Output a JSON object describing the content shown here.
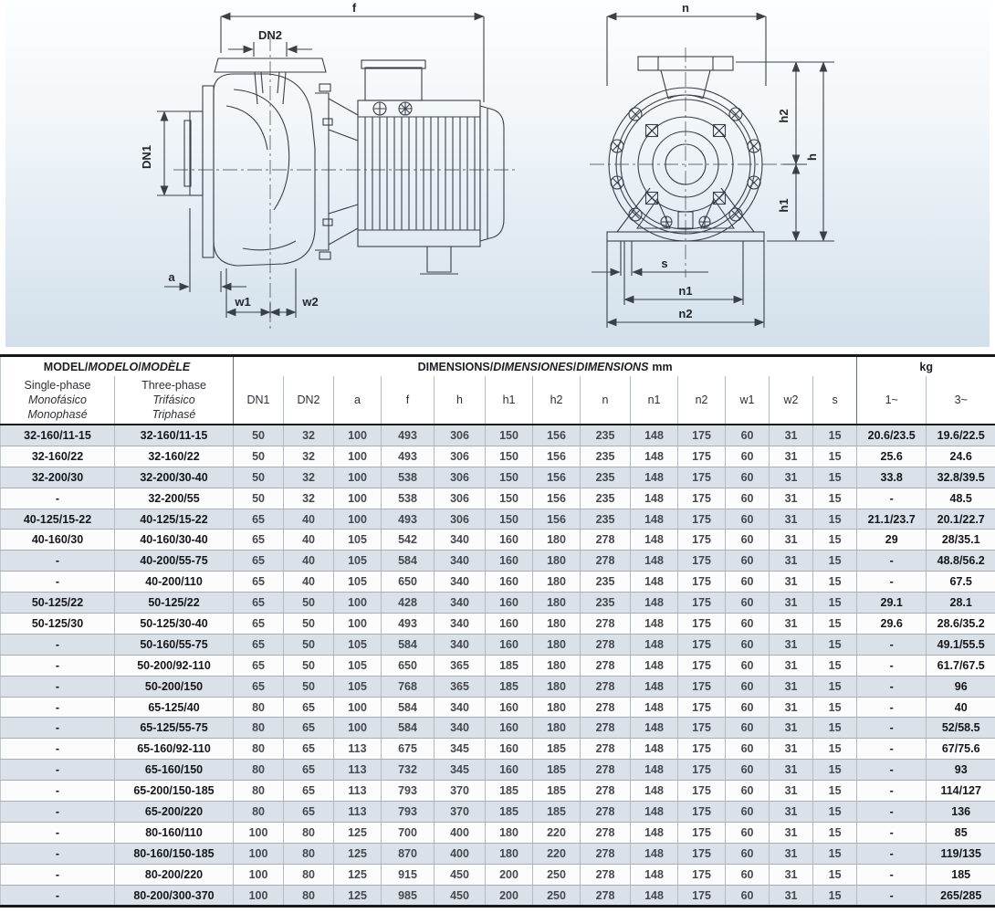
{
  "drawings": {
    "side": {
      "f": "f",
      "dn2": "DN2",
      "dn1": "DN1",
      "a": "a",
      "w1": "w1",
      "w2": "w2"
    },
    "front": {
      "n": "n",
      "h2": "h2",
      "h": "h",
      "h1": "h1",
      "s": "s",
      "n1": "n1",
      "n2": "n2"
    }
  },
  "table": {
    "header": {
      "sep": "/",
      "model_title": [
        "MODEL",
        "MODELO",
        "MODÈLE"
      ],
      "dims_title": [
        "DIMENSIONS",
        "DIMENSIONES",
        "DIMENSIONS"
      ],
      "unit": "mm",
      "kg": "kg",
      "single_phase": [
        "Single-phase",
        "Monofásico",
        "Monophasé"
      ],
      "three_phase": [
        "Three-phase",
        "Trifásico",
        "Triphasé"
      ],
      "dim_cols": [
        "DN1",
        "DN2",
        "a",
        "f",
        "h",
        "h1",
        "h2",
        "n",
        "n1",
        "n2",
        "w1",
        "w2",
        "s"
      ],
      "kg_cols": [
        "1~",
        "3~"
      ]
    },
    "rows": [
      {
        "m1": "32-160/11-15",
        "m3": "32-160/11-15",
        "dims": [
          50,
          32,
          100,
          493,
          306,
          150,
          156,
          235,
          148,
          175,
          60,
          31,
          15
        ],
        "kg1": "20.6/23.5",
        "kg3": "19.6/22.5"
      },
      {
        "m1": "32-160/22",
        "m3": "32-160/22",
        "dims": [
          50,
          32,
          100,
          493,
          306,
          150,
          156,
          235,
          148,
          175,
          60,
          31,
          15
        ],
        "kg1": "25.6",
        "kg3": "24.6"
      },
      {
        "m1": "32-200/30",
        "m3": "32-200/30-40",
        "dims": [
          50,
          32,
          100,
          538,
          306,
          150,
          156,
          235,
          148,
          175,
          60,
          31,
          15
        ],
        "kg1": "33.8",
        "kg3": "32.8/39.5"
      },
      {
        "m1": "-",
        "m3": "32-200/55",
        "dims": [
          50,
          32,
          100,
          538,
          306,
          150,
          156,
          235,
          148,
          175,
          60,
          31,
          15
        ],
        "kg1": "-",
        "kg3": "48.5"
      },
      {
        "m1": "40-125/15-22",
        "m3": "40-125/15-22",
        "dims": [
          65,
          40,
          100,
          493,
          306,
          150,
          156,
          235,
          148,
          175,
          60,
          31,
          15
        ],
        "kg1": "21.1/23.7",
        "kg3": "20.1/22.7"
      },
      {
        "m1": "40-160/30",
        "m3": "40-160/30-40",
        "dims": [
          65,
          40,
          105,
          542,
          340,
          160,
          180,
          278,
          148,
          175,
          60,
          31,
          15
        ],
        "kg1": "29",
        "kg3": "28/35.1"
      },
      {
        "m1": "-",
        "m3": "40-200/55-75",
        "dims": [
          65,
          40,
          105,
          584,
          340,
          160,
          180,
          278,
          148,
          175,
          60,
          31,
          15
        ],
        "kg1": "-",
        "kg3": "48.8/56.2"
      },
      {
        "m1": "-",
        "m3": "40-200/110",
        "dims": [
          65,
          40,
          105,
          650,
          340,
          160,
          180,
          235,
          148,
          175,
          60,
          31,
          15
        ],
        "kg1": "-",
        "kg3": "67.5"
      },
      {
        "m1": "50-125/22",
        "m3": "50-125/22",
        "dims": [
          65,
          50,
          100,
          428,
          340,
          160,
          180,
          235,
          148,
          175,
          60,
          31,
          15
        ],
        "kg1": "29.1",
        "kg3": "28.1"
      },
      {
        "m1": "50-125/30",
        "m3": "50-125/30-40",
        "dims": [
          65,
          50,
          100,
          493,
          340,
          160,
          180,
          278,
          148,
          175,
          60,
          31,
          15
        ],
        "kg1": "29.6",
        "kg3": "28.6/35.2"
      },
      {
        "m1": "-",
        "m3": "50-160/55-75",
        "dims": [
          65,
          50,
          105,
          584,
          340,
          160,
          180,
          278,
          148,
          175,
          60,
          31,
          15
        ],
        "kg1": "-",
        "kg3": "49.1/55.5"
      },
      {
        "m1": "-",
        "m3": "50-200/92-110",
        "dims": [
          65,
          50,
          105,
          650,
          365,
          185,
          180,
          278,
          148,
          175,
          60,
          31,
          15
        ],
        "kg1": "-",
        "kg3": "61.7/67.5"
      },
      {
        "m1": "-",
        "m3": "50-200/150",
        "dims": [
          65,
          50,
          105,
          768,
          365,
          185,
          180,
          278,
          148,
          175,
          60,
          31,
          15
        ],
        "kg1": "-",
        "kg3": "96"
      },
      {
        "m1": "-",
        "m3": "65-125/40",
        "dims": [
          80,
          65,
          100,
          584,
          340,
          160,
          180,
          278,
          148,
          175,
          60,
          31,
          15
        ],
        "kg1": "-",
        "kg3": "40"
      },
      {
        "m1": "-",
        "m3": "65-125/55-75",
        "dims": [
          80,
          65,
          100,
          584,
          340,
          160,
          180,
          278,
          148,
          175,
          60,
          31,
          15
        ],
        "kg1": "-",
        "kg3": "52/58.5"
      },
      {
        "m1": "-",
        "m3": "65-160/92-110",
        "dims": [
          80,
          65,
          113,
          675,
          345,
          160,
          185,
          278,
          148,
          175,
          60,
          31,
          15
        ],
        "kg1": "-",
        "kg3": "67/75.6"
      },
      {
        "m1": "-",
        "m3": "65-160/150",
        "dims": [
          80,
          65,
          113,
          732,
          345,
          160,
          185,
          278,
          148,
          175,
          60,
          31,
          15
        ],
        "kg1": "-",
        "kg3": "93"
      },
      {
        "m1": "-",
        "m3": "65-200/150-185",
        "dims": [
          80,
          65,
          113,
          793,
          370,
          185,
          185,
          278,
          148,
          175,
          60,
          31,
          15
        ],
        "kg1": "-",
        "kg3": "114/127"
      },
      {
        "m1": "-",
        "m3": "65-200/220",
        "dims": [
          80,
          65,
          113,
          793,
          370,
          185,
          185,
          278,
          148,
          175,
          60,
          31,
          15
        ],
        "kg1": "-",
        "kg3": "136"
      },
      {
        "m1": "-",
        "m3": "80-160/110",
        "dims": [
          100,
          80,
          125,
          700,
          400,
          180,
          220,
          278,
          148,
          175,
          60,
          31,
          15
        ],
        "kg1": "-",
        "kg3": "85"
      },
      {
        "m1": "-",
        "m3": "80-160/150-185",
        "dims": [
          100,
          80,
          125,
          870,
          400,
          180,
          220,
          278,
          148,
          175,
          60,
          31,
          15
        ],
        "kg1": "-",
        "kg3": "119/135"
      },
      {
        "m1": "-",
        "m3": "80-200/220",
        "dims": [
          100,
          80,
          125,
          915,
          450,
          200,
          250,
          278,
          148,
          175,
          60,
          31,
          15
        ],
        "kg1": "-",
        "kg3": "185"
      },
      {
        "m1": "-",
        "m3": "80-200/300-370",
        "dims": [
          100,
          80,
          125,
          985,
          450,
          200,
          250,
          278,
          148,
          175,
          60,
          31,
          15
        ],
        "kg1": "-",
        "kg3": "265/285"
      }
    ]
  }
}
